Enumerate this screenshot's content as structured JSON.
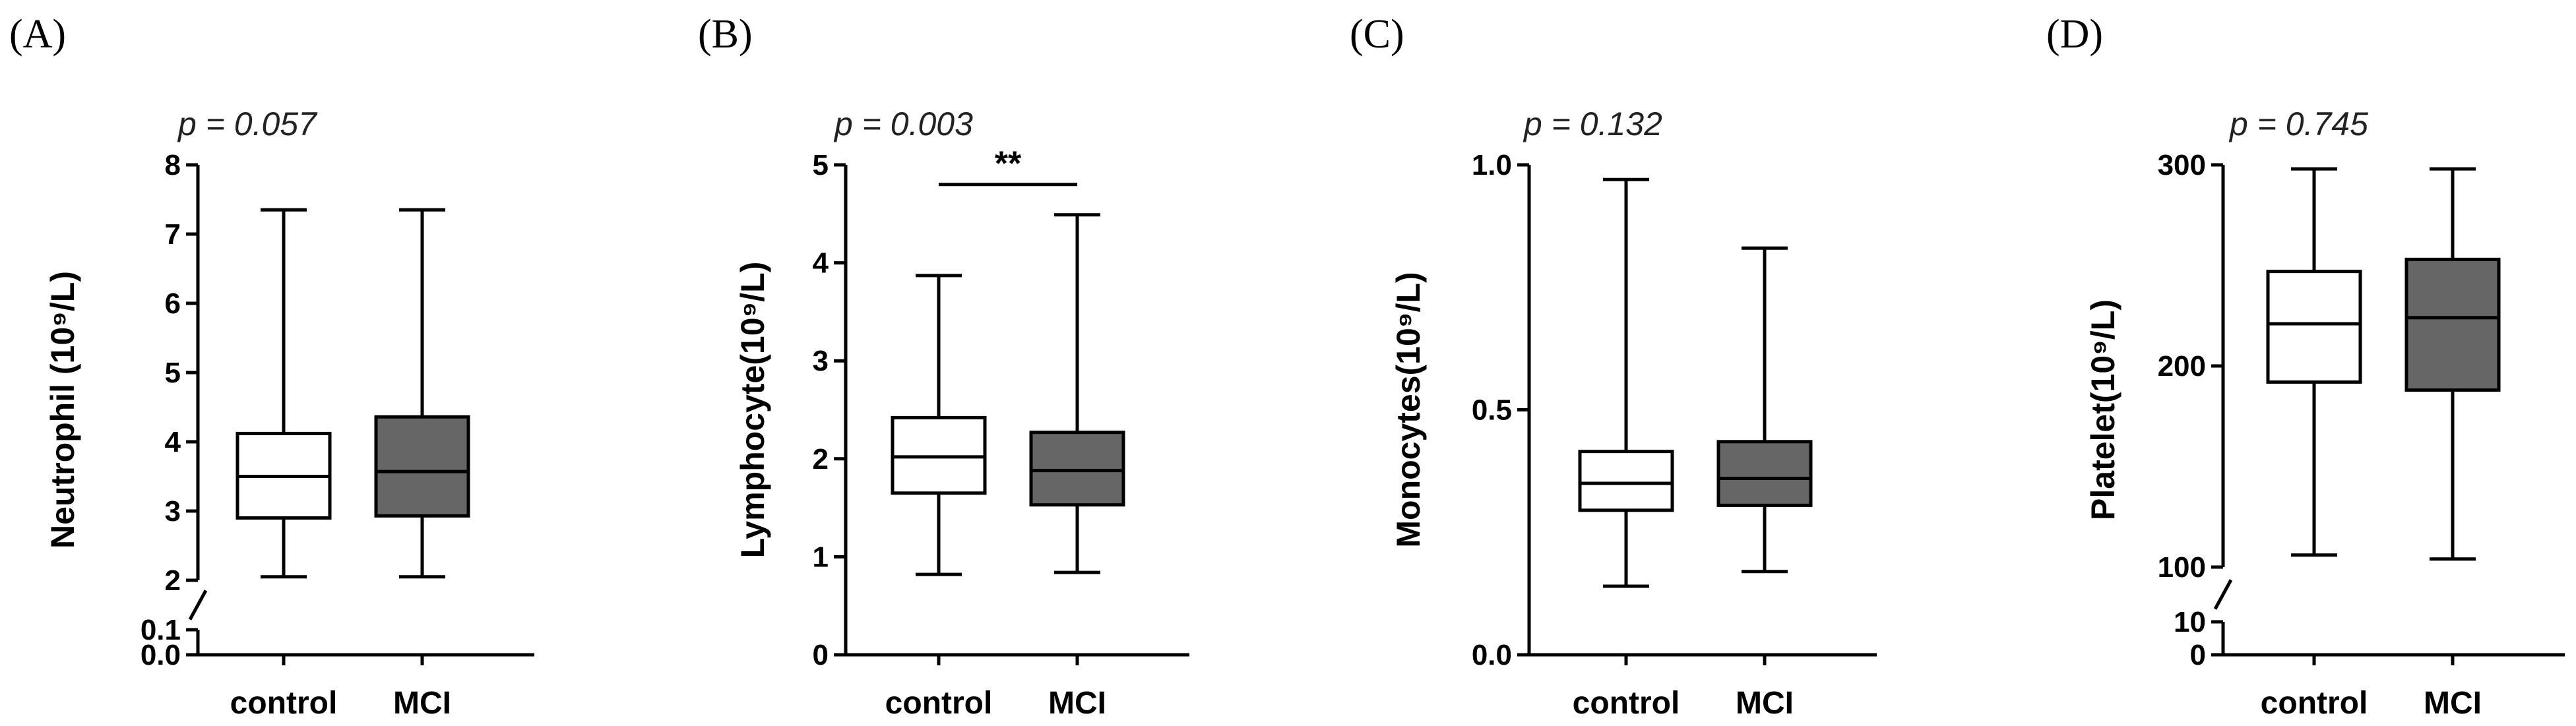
{
  "colors": {
    "control": "#ffffff",
    "MCI": "#666666",
    "stroke": "#000000"
  },
  "chart_data": [
    {
      "type": "boxplot",
      "panel_label": "(A)",
      "ylabel": "Neutrophil (10⁹/L)",
      "p_value": "p = 0.057",
      "categories": [
        "control",
        "MCI"
      ],
      "ylim": [
        0,
        8
      ],
      "axis_break": {
        "from": 0.1,
        "to": 2
      },
      "yticks": [
        0,
        0.1,
        2,
        3,
        4,
        5,
        6,
        7,
        8
      ],
      "ytick_labels": [
        "0.0",
        "0.1",
        "2",
        "3",
        "4",
        "5",
        "6",
        "7",
        "8"
      ],
      "boxes": [
        {
          "name": "control",
          "min": 2.05,
          "q1": 2.9,
          "median": 3.5,
          "q3": 4.12,
          "max": 7.35
        },
        {
          "name": "MCI",
          "min": 2.05,
          "q1": 2.93,
          "median": 3.57,
          "q3": 4.36,
          "max": 7.35
        }
      ]
    },
    {
      "type": "boxplot",
      "panel_label": "(B)",
      "ylabel": "Lymphocyte(10⁹/L)",
      "p_value": "p = 0.003",
      "significance": "**",
      "categories": [
        "control",
        "MCI"
      ],
      "ylim": [
        0,
        5
      ],
      "yticks": [
        0,
        1,
        2,
        3,
        4,
        5
      ],
      "ytick_labels": [
        "0",
        "1",
        "2",
        "3",
        "4",
        "5"
      ],
      "sig_y": 4.8,
      "boxes": [
        {
          "name": "control",
          "min": 0.82,
          "q1": 1.65,
          "median": 2.02,
          "q3": 2.42,
          "max": 3.87
        },
        {
          "name": "MCI",
          "min": 0.84,
          "q1": 1.53,
          "median": 1.88,
          "q3": 2.27,
          "max": 4.49
        }
      ]
    },
    {
      "type": "boxplot",
      "panel_label": "(C)",
      "ylabel": "Monocytes(10⁹/L)",
      "p_value": "p = 0.132",
      "categories": [
        "control",
        "MCI"
      ],
      "ylim": [
        0,
        1.0
      ],
      "yticks": [
        0,
        0.5,
        1.0
      ],
      "ytick_labels": [
        "0.0",
        "0.5",
        "1.0"
      ],
      "boxes": [
        {
          "name": "control",
          "min": 0.14,
          "q1": 0.295,
          "median": 0.35,
          "q3": 0.415,
          "max": 0.97
        },
        {
          "name": "MCI",
          "min": 0.17,
          "q1": 0.305,
          "median": 0.36,
          "q3": 0.435,
          "max": 0.83
        }
      ]
    },
    {
      "type": "boxplot",
      "panel_label": "(D)",
      "ylabel": "Platelet(10⁹/L)",
      "p_value": "p = 0.745",
      "categories": [
        "control",
        "MCI"
      ],
      "ylim": [
        0,
        300
      ],
      "axis_break": {
        "from": 10,
        "to": 100
      },
      "yticks": [
        0,
        10,
        100,
        200,
        300
      ],
      "ytick_labels": [
        "0",
        "10",
        "100",
        "200",
        "300"
      ],
      "boxes": [
        {
          "name": "control",
          "min": 106,
          "q1": 192,
          "median": 221,
          "q3": 247,
          "max": 298
        },
        {
          "name": "MCI",
          "min": 104,
          "q1": 188,
          "median": 224,
          "q3": 253,
          "max": 298
        }
      ]
    }
  ]
}
